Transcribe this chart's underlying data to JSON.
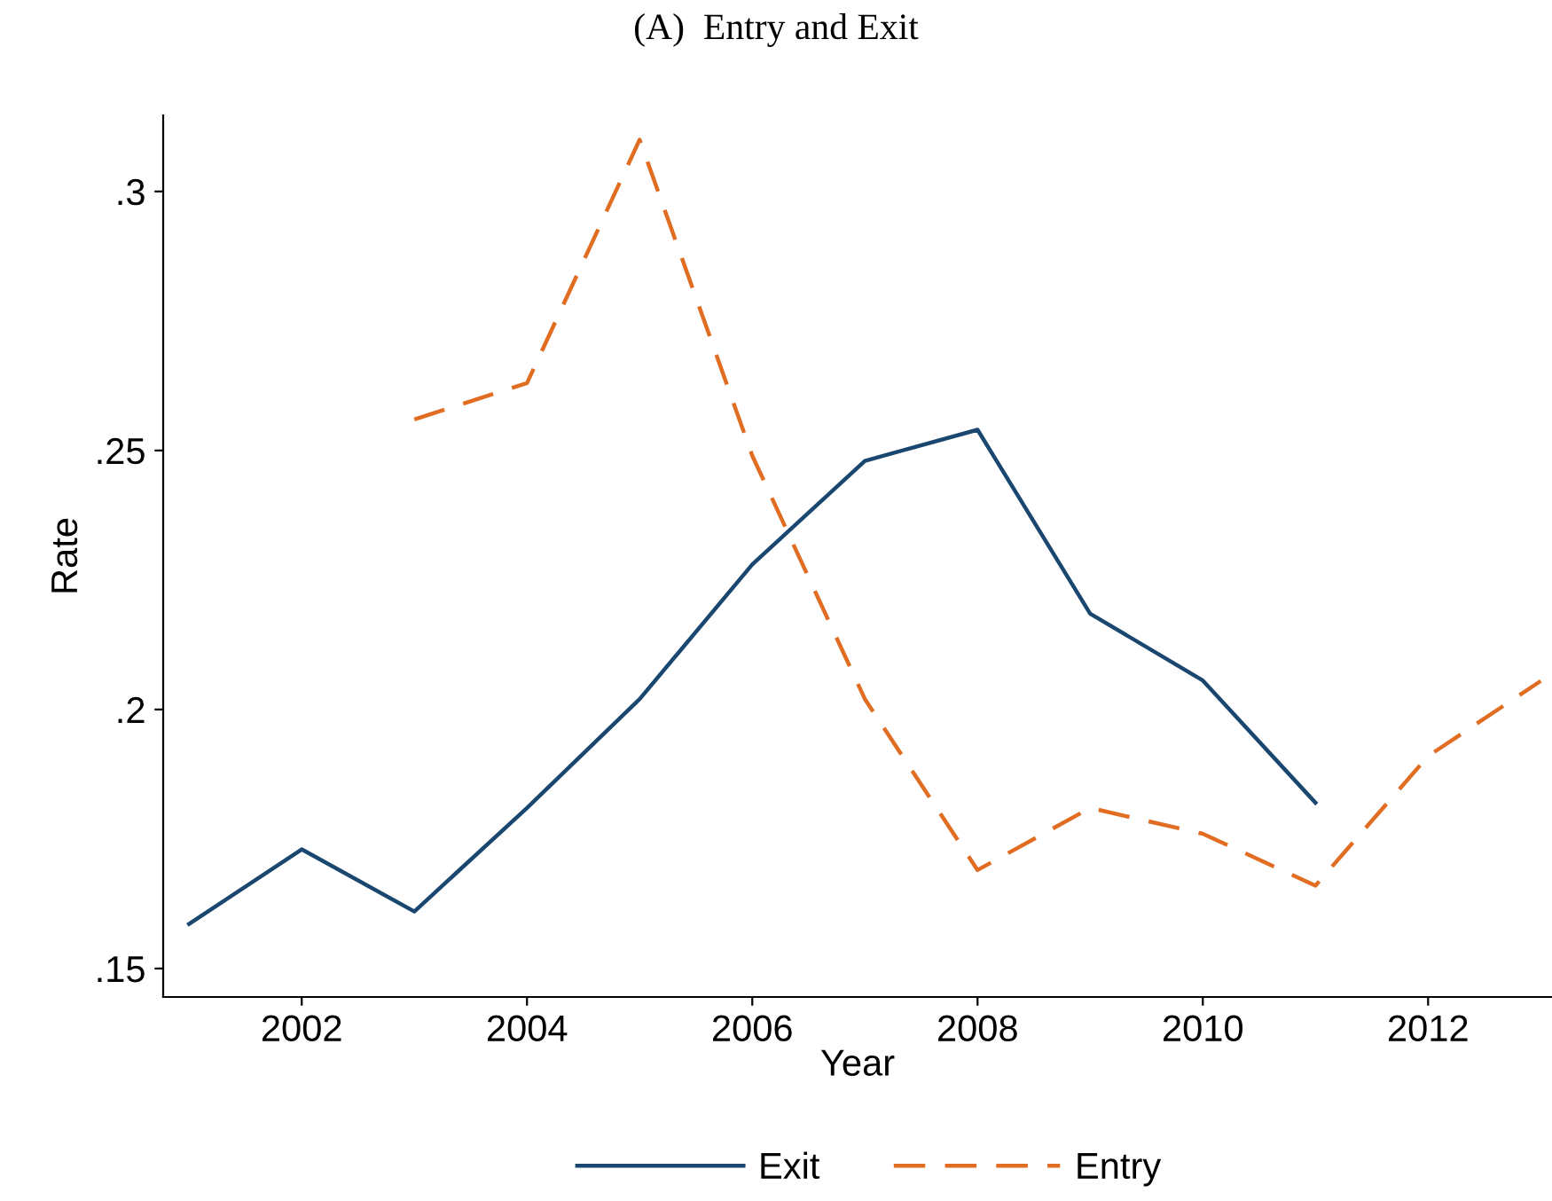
{
  "chart_data": {
    "type": "line",
    "title": "(A)  Entry and Exit",
    "xlabel": "Year",
    "ylabel": "Rate",
    "x": [
      2001,
      2002,
      2003,
      2004,
      2005,
      2006,
      2007,
      2008,
      2009,
      2010,
      2011,
      2012,
      2013
    ],
    "series": [
      {
        "name": "Exit",
        "color": "#1a476f",
        "line_style": "solid",
        "values": [
          0.1586,
          0.173,
          0.161,
          0.181,
          0.202,
          0.228,
          0.248,
          0.254,
          0.2185,
          0.2056,
          0.182,
          null,
          null
        ]
      },
      {
        "name": "Entry",
        "color": "#e06d21",
        "line_style": "dashed",
        "values": [
          null,
          null,
          0.256,
          0.263,
          0.31,
          0.249,
          0.202,
          0.169,
          0.181,
          0.176,
          0.166,
          0.191,
          0.2055
        ]
      }
    ],
    "xlim": [
      2000.77,
      2013.1
    ],
    "ylim": [
      0.1445,
      0.3147
    ],
    "xticks": [
      2002,
      2004,
      2006,
      2008,
      2010,
      2012
    ],
    "yticks": [
      {
        "value": 0.15,
        "label": ".15"
      },
      {
        "value": 0.2,
        "label": ".2"
      },
      {
        "value": 0.25,
        "label": ".25"
      },
      {
        "value": 0.3,
        "label": ".3"
      }
    ],
    "grid": false,
    "legend": "bottom",
    "marker": "none"
  }
}
